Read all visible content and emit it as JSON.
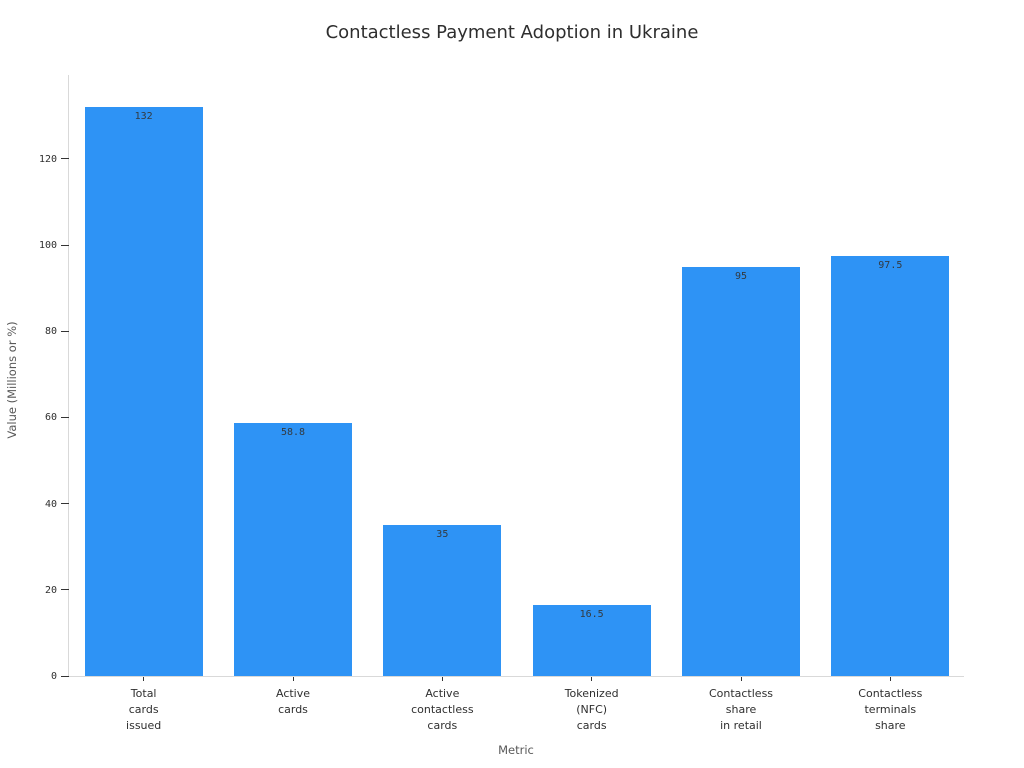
{
  "title": "Contactless Payment Adoption in Ukraine",
  "chart_data": {
    "type": "bar",
    "title": "Contactless Payment Adoption in Ukraine",
    "xlabel": "Metric",
    "ylabel": "Value (Millions or %)",
    "categories": [
      "Total\ncards\nissued",
      "Active\ncards",
      "Active\ncontactless\ncards",
      "Tokenized\n(NFC)\ncards",
      "Contactless\nshare\nin retail",
      "Contactless\nterminals\nshare"
    ],
    "values": [
      132,
      58.8,
      35,
      16.5,
      95,
      97.5
    ],
    "value_labels": [
      "132",
      "58.8",
      "35",
      "16.5",
      "95",
      "97.5"
    ],
    "yticks": [
      0,
      20,
      40,
      60,
      80,
      100,
      120
    ],
    "ylim": [
      0,
      139.7
    ],
    "grid": false,
    "legend": false,
    "bar_color": "#2e93f5",
    "axis_line_color": "#d9d9d9",
    "tick_color": "#333333",
    "label_color": "#2f2f2f"
  }
}
